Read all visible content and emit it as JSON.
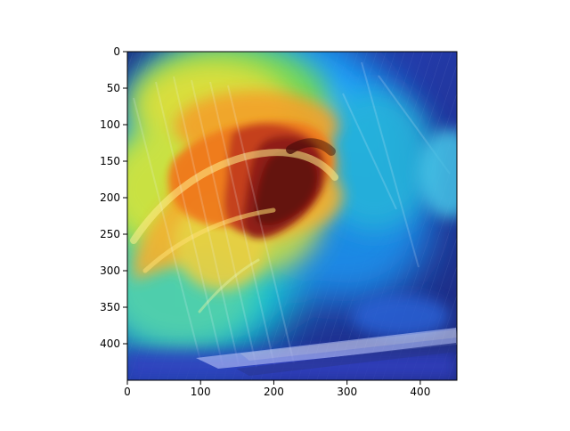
{
  "figure": {
    "background": "#ffffff",
    "axis_color": "#000000"
  },
  "chart_data": {
    "type": "heatmap",
    "title": "",
    "xlabel": "",
    "ylabel": "",
    "xlim": [
      0,
      450
    ],
    "ylim": [
      450,
      0
    ],
    "xticks": [
      0,
      100,
      200,
      300,
      400
    ],
    "yticks": [
      0,
      50,
      100,
      150,
      200,
      250,
      300,
      350,
      400
    ],
    "colormap": "jet",
    "overlay": "saliency heatmap over bird photograph",
    "grid": false,
    "legend": "none"
  }
}
